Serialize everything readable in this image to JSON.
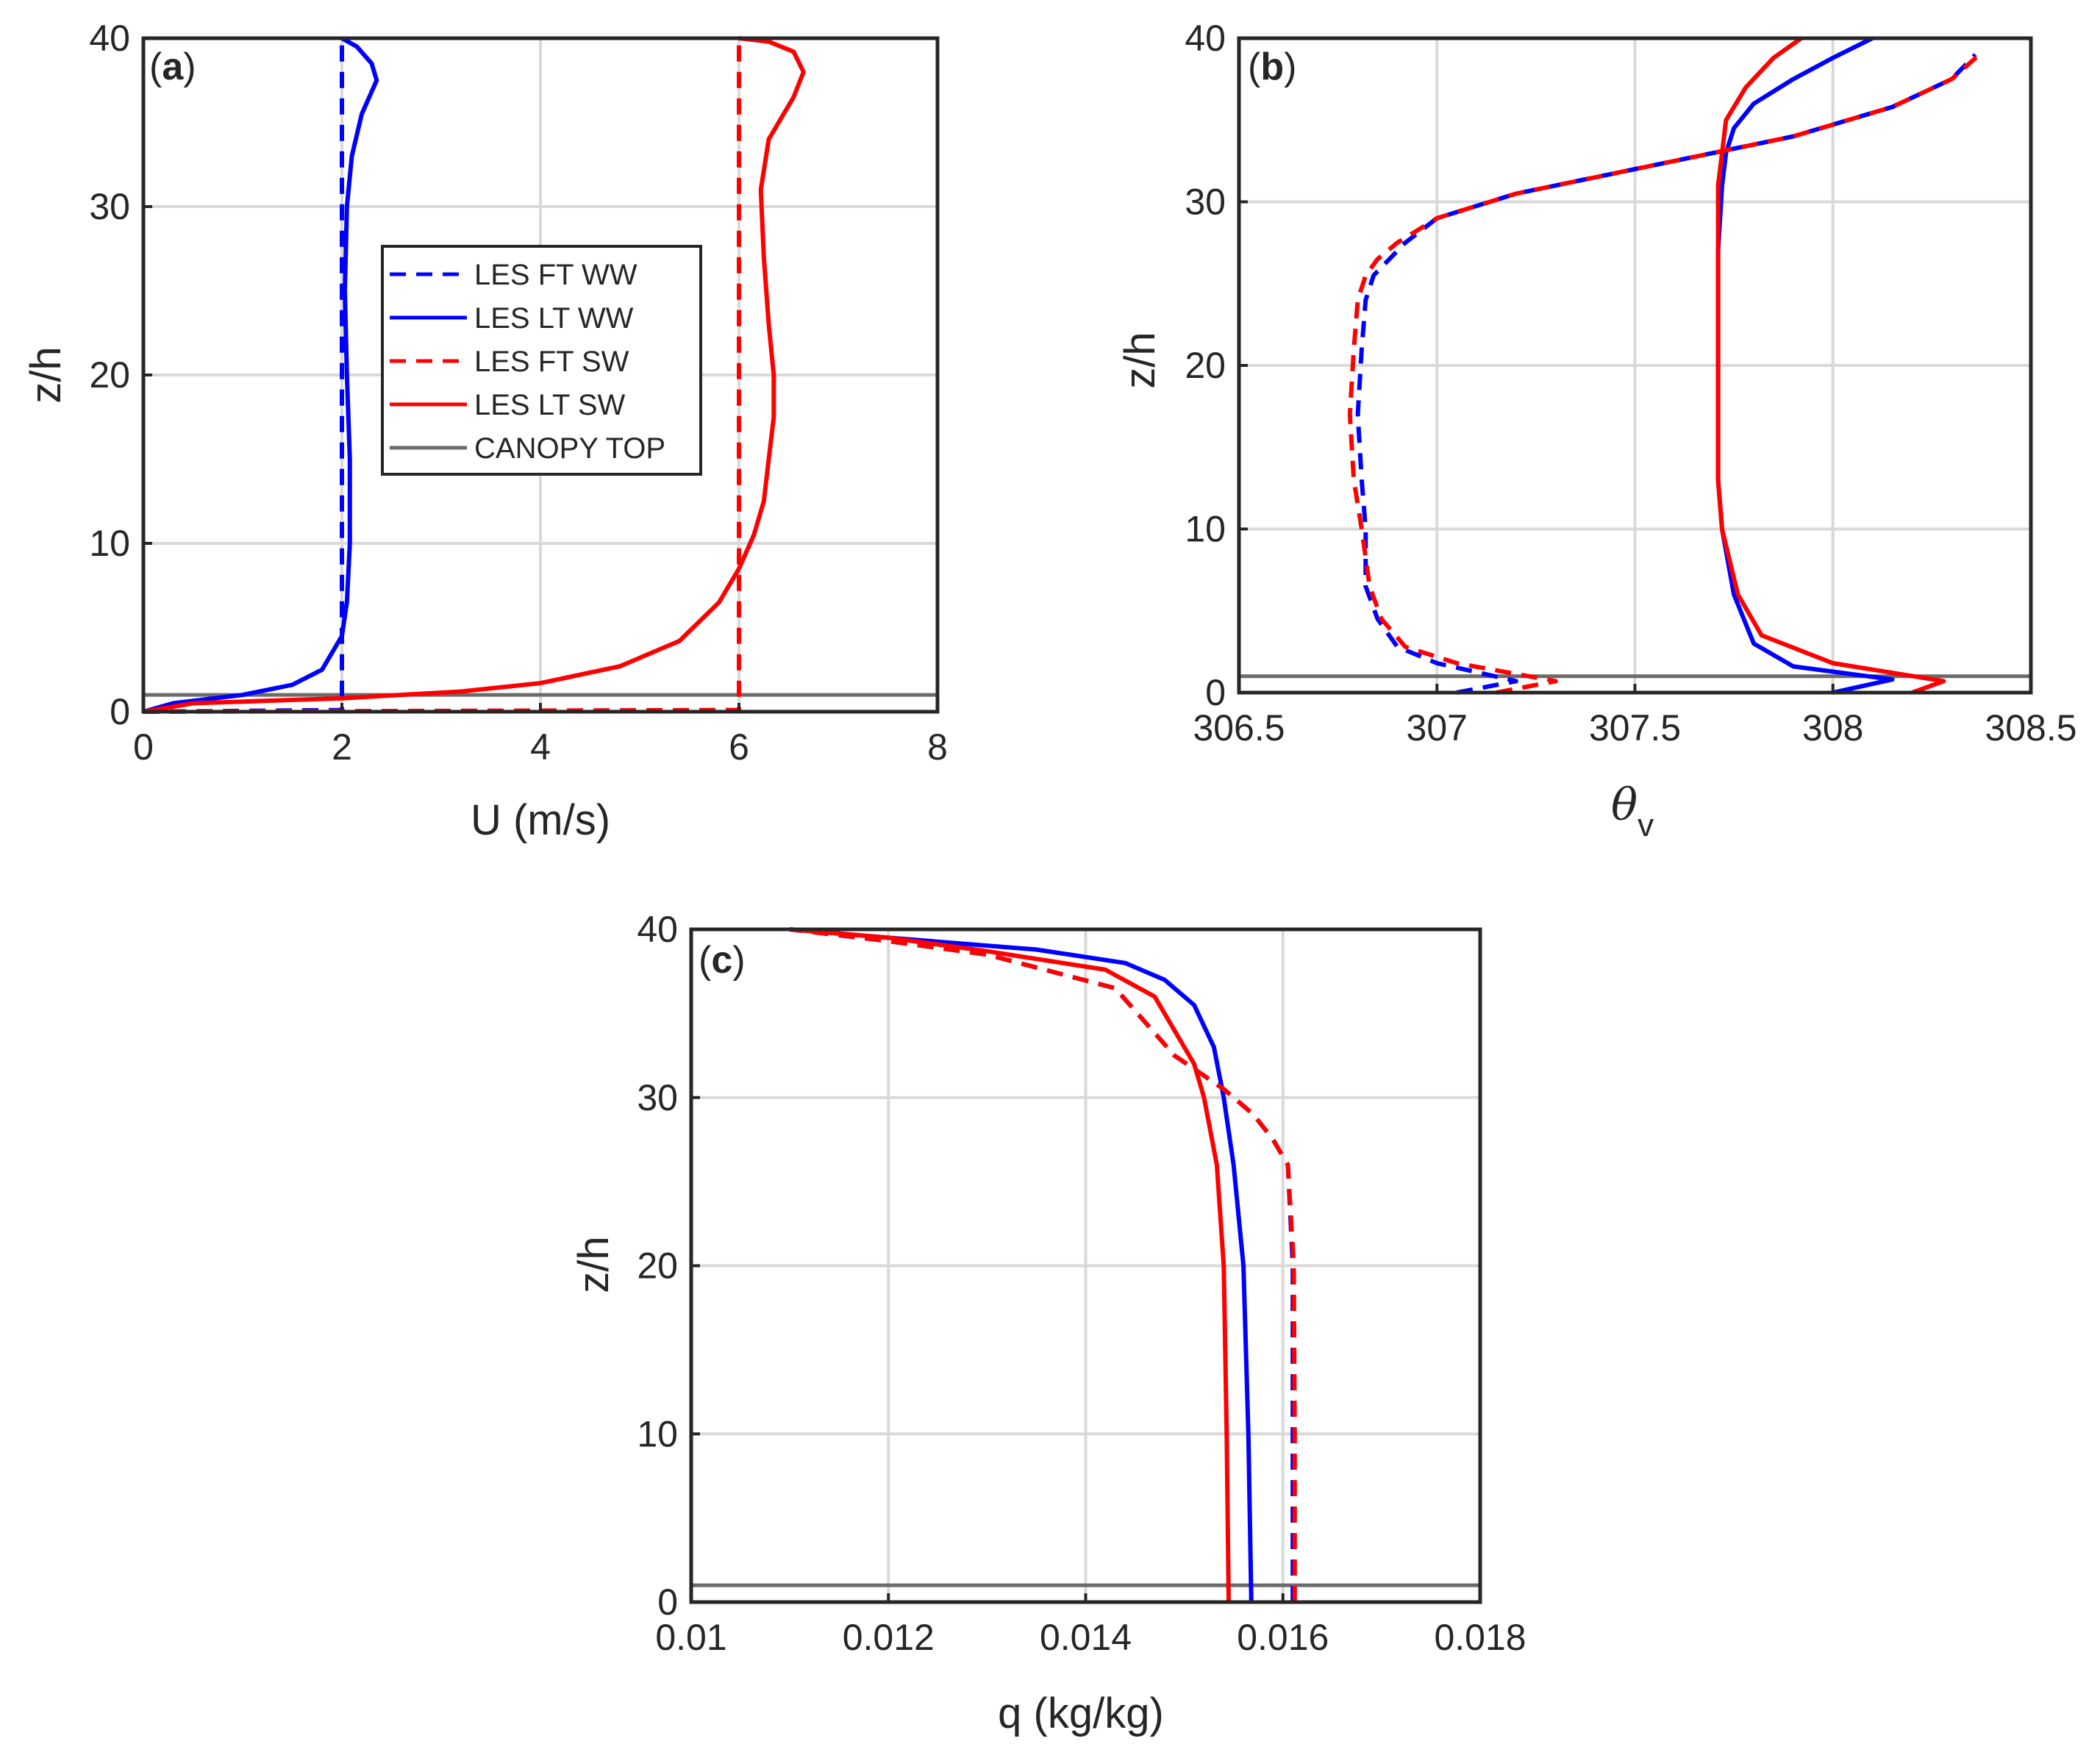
{
  "figure": {
    "colors": {
      "ww": "#0000ff",
      "sw": "#ff0000",
      "canopy": "#6b6b6b",
      "grid": "#d9d9d9",
      "axis": "#262626"
    },
    "legend": {
      "items": [
        {
          "label": "LES FT WW",
          "series": "ww",
          "dashed": true
        },
        {
          "label": "LES LT WW",
          "series": "ww",
          "dashed": false
        },
        {
          "label": "LES FT SW",
          "series": "sw",
          "dashed": true
        },
        {
          "label": "LES LT SW",
          "series": "sw",
          "dashed": false
        },
        {
          "label": "CANOPY TOP",
          "series": "canopy",
          "dashed": false
        }
      ]
    }
  },
  "chart_data": [
    {
      "id": "a",
      "type": "line",
      "panel_label": "a",
      "xlabel": "U (m/s)",
      "ylabel": "z/h",
      "xlim": [
        0,
        8
      ],
      "ylim": [
        0,
        40
      ],
      "xticks": [
        "0",
        "2",
        "4",
        "6",
        "8"
      ],
      "yticks": [
        "0",
        "10",
        "20",
        "30",
        "40"
      ],
      "grid": true,
      "legend_position": "center",
      "canopy_top": 1,
      "series": [
        {
          "name": "LES FT WW",
          "color": "ww",
          "dashed": true,
          "x": [
            0,
            2,
            2,
            2,
            2
          ],
          "y": [
            0,
            0.1,
            10,
            30,
            40
          ]
        },
        {
          "name": "LES LT WW",
          "color": "ww",
          "dashed": false,
          "x": [
            0,
            0.3,
            1.0,
            1.5,
            1.8,
            2.0,
            2.05,
            2.08,
            2.08,
            2.05,
            2.03,
            2.05,
            2.1,
            2.2,
            2.35,
            2.3,
            2.15,
            2.0
          ],
          "y": [
            0,
            0.5,
            1.0,
            1.6,
            2.5,
            4.5,
            6.5,
            10,
            15,
            20,
            25,
            30,
            33,
            35.5,
            37.5,
            38.5,
            39.5,
            40
          ]
        },
        {
          "name": "LES FT SW",
          "color": "sw",
          "dashed": true,
          "x": [
            0,
            6,
            6,
            6,
            6
          ],
          "y": [
            0,
            0.1,
            10,
            30,
            40
          ]
        },
        {
          "name": "LES LT SW",
          "color": "sw",
          "dashed": false,
          "x": [
            0,
            0.5,
            2.0,
            3.2,
            4.0,
            4.8,
            5.4,
            5.8,
            6.0,
            6.15,
            6.25,
            6.3,
            6.35,
            6.35,
            6.3,
            6.25,
            6.22,
            6.3,
            6.55,
            6.65,
            6.55,
            6.3,
            6.0
          ],
          "y": [
            0,
            0.5,
            0.8,
            1.2,
            1.7,
            2.7,
            4.2,
            6.5,
            8.5,
            10.5,
            12.5,
            15,
            17.5,
            20,
            23,
            27,
            31,
            34,
            36.5,
            38,
            39.2,
            39.8,
            40
          ]
        }
      ]
    },
    {
      "id": "b",
      "type": "line",
      "panel_label": "b",
      "xlabel_symbol": "θ",
      "xlabel_sub": "v",
      "ylabel": "z/h",
      "xlim": [
        306.5,
        308.5
      ],
      "ylim": [
        0,
        40
      ],
      "xticks": [
        "306.5",
        "307",
        "307.5",
        "308",
        "308.5"
      ],
      "yticks": [
        "0",
        "10",
        "20",
        "30",
        "40"
      ],
      "grid": true,
      "canopy_top": 1,
      "series": [
        {
          "name": "LES FT WW",
          "color": "ww",
          "dashed": true,
          "x": [
            307.05,
            307.2,
            307.0,
            306.9,
            306.85,
            306.82,
            306.82,
            306.81,
            306.8,
            306.81,
            306.82,
            306.84,
            306.88,
            306.92,
            307.0,
            307.2,
            307.5,
            307.7,
            307.9,
            308.15,
            308.3,
            308.36
          ],
          "y": [
            0,
            0.7,
            1.8,
            2.8,
            4.5,
            6.5,
            10,
            13,
            17,
            21,
            24,
            25.5,
            26.5,
            27.5,
            29,
            30.5,
            32,
            33,
            34,
            35.8,
            37.5,
            39
          ]
        },
        {
          "name": "LES LT WW",
          "color": "ww",
          "dashed": false,
          "x": [
            308.0,
            308.15,
            307.9,
            307.8,
            307.75,
            307.72,
            307.71,
            307.71,
            307.71,
            307.72,
            307.73,
            307.75,
            307.8,
            307.9,
            308.0,
            308.1
          ],
          "y": [
            0,
            0.8,
            1.6,
            3,
            6,
            10,
            13,
            20,
            27,
            31,
            33,
            34.5,
            36,
            37.5,
            38.8,
            40
          ]
        },
        {
          "name": "LES FT SW",
          "color": "sw",
          "dashed": true,
          "x": [
            307.15,
            307.3,
            307.05,
            306.92,
            306.86,
            306.83,
            306.81,
            306.79,
            306.78,
            306.79,
            306.8,
            306.82,
            306.85,
            306.9,
            307.0,
            307.2,
            307.5,
            307.7,
            307.9,
            308.15,
            308.3,
            308.37
          ],
          "y": [
            0,
            0.7,
            1.8,
            2.8,
            4.5,
            6.5,
            10,
            13,
            17,
            21,
            24,
            25.5,
            26.5,
            27.5,
            29,
            30.5,
            32,
            33,
            34,
            35.8,
            37.5,
            39
          ]
        },
        {
          "name": "LES LT SW",
          "color": "sw",
          "dashed": false,
          "x": [
            308.2,
            308.28,
            308.0,
            307.82,
            307.76,
            307.72,
            307.71,
            307.71,
            307.71,
            307.71,
            307.72,
            307.73,
            307.78,
            307.85,
            307.92
          ],
          "y": [
            0,
            0.7,
            1.8,
            3.5,
            6,
            10,
            13,
            20,
            27,
            31,
            33,
            35,
            37,
            38.8,
            40
          ]
        }
      ]
    },
    {
      "id": "c",
      "type": "line",
      "panel_label": "c",
      "xlabel": "q (kg/kg)",
      "ylabel": "z/h",
      "xlim": [
        0.01,
        0.018
      ],
      "ylim": [
        0,
        40
      ],
      "xticks": [
        "0.01",
        "0.012",
        "0.014",
        "0.016",
        "0.018"
      ],
      "yticks": [
        "0",
        "10",
        "20",
        "30",
        "40"
      ],
      "grid": true,
      "canopy_top": 1,
      "series": [
        {
          "name": "LES FT WW",
          "color": "ww",
          "dashed": true,
          "x": [
            0.0161,
            0.0161,
            0.0161,
            0.01605,
            0.0159,
            0.0157,
            0.0154,
            0.0149,
            0.0146,
            0.0143,
            0.013,
            0.012,
            0.011
          ],
          "y": [
            0,
            10,
            20,
            26,
            27.5,
            29,
            30.5,
            32.5,
            34.5,
            36.5,
            38.5,
            39.3,
            40
          ]
        },
        {
          "name": "LES LT WW",
          "color": "ww",
          "dashed": false,
          "x": [
            0.01568,
            0.01565,
            0.0156,
            0.0155,
            0.0154,
            0.0153,
            0.0151,
            0.0148,
            0.0144,
            0.0135,
            0.012,
            0.011
          ],
          "y": [
            0,
            10,
            20,
            26,
            30,
            33,
            35.5,
            37,
            38,
            38.8,
            39.5,
            40
          ]
        },
        {
          "name": "LES FT SW",
          "color": "sw",
          "dashed": true,
          "x": [
            0.01612,
            0.01612,
            0.01611,
            0.01605,
            0.0159,
            0.0157,
            0.0154,
            0.0149,
            0.0146,
            0.0143,
            0.013,
            0.012,
            0.011
          ],
          "y": [
            0,
            10,
            20,
            26,
            27.5,
            29,
            30.5,
            32.5,
            34.5,
            36.5,
            38.5,
            39.3,
            40
          ]
        },
        {
          "name": "LES LT SW",
          "color": "sw",
          "dashed": false,
          "x": [
            0.01545,
            0.01543,
            0.0154,
            0.01533,
            0.0152,
            0.0151,
            0.0149,
            0.0147,
            0.0142,
            0.013,
            0.012,
            0.011
          ],
          "y": [
            0,
            10,
            20,
            26,
            30,
            32,
            34,
            36,
            37.6,
            38.7,
            39.5,
            40
          ]
        }
      ]
    }
  ]
}
